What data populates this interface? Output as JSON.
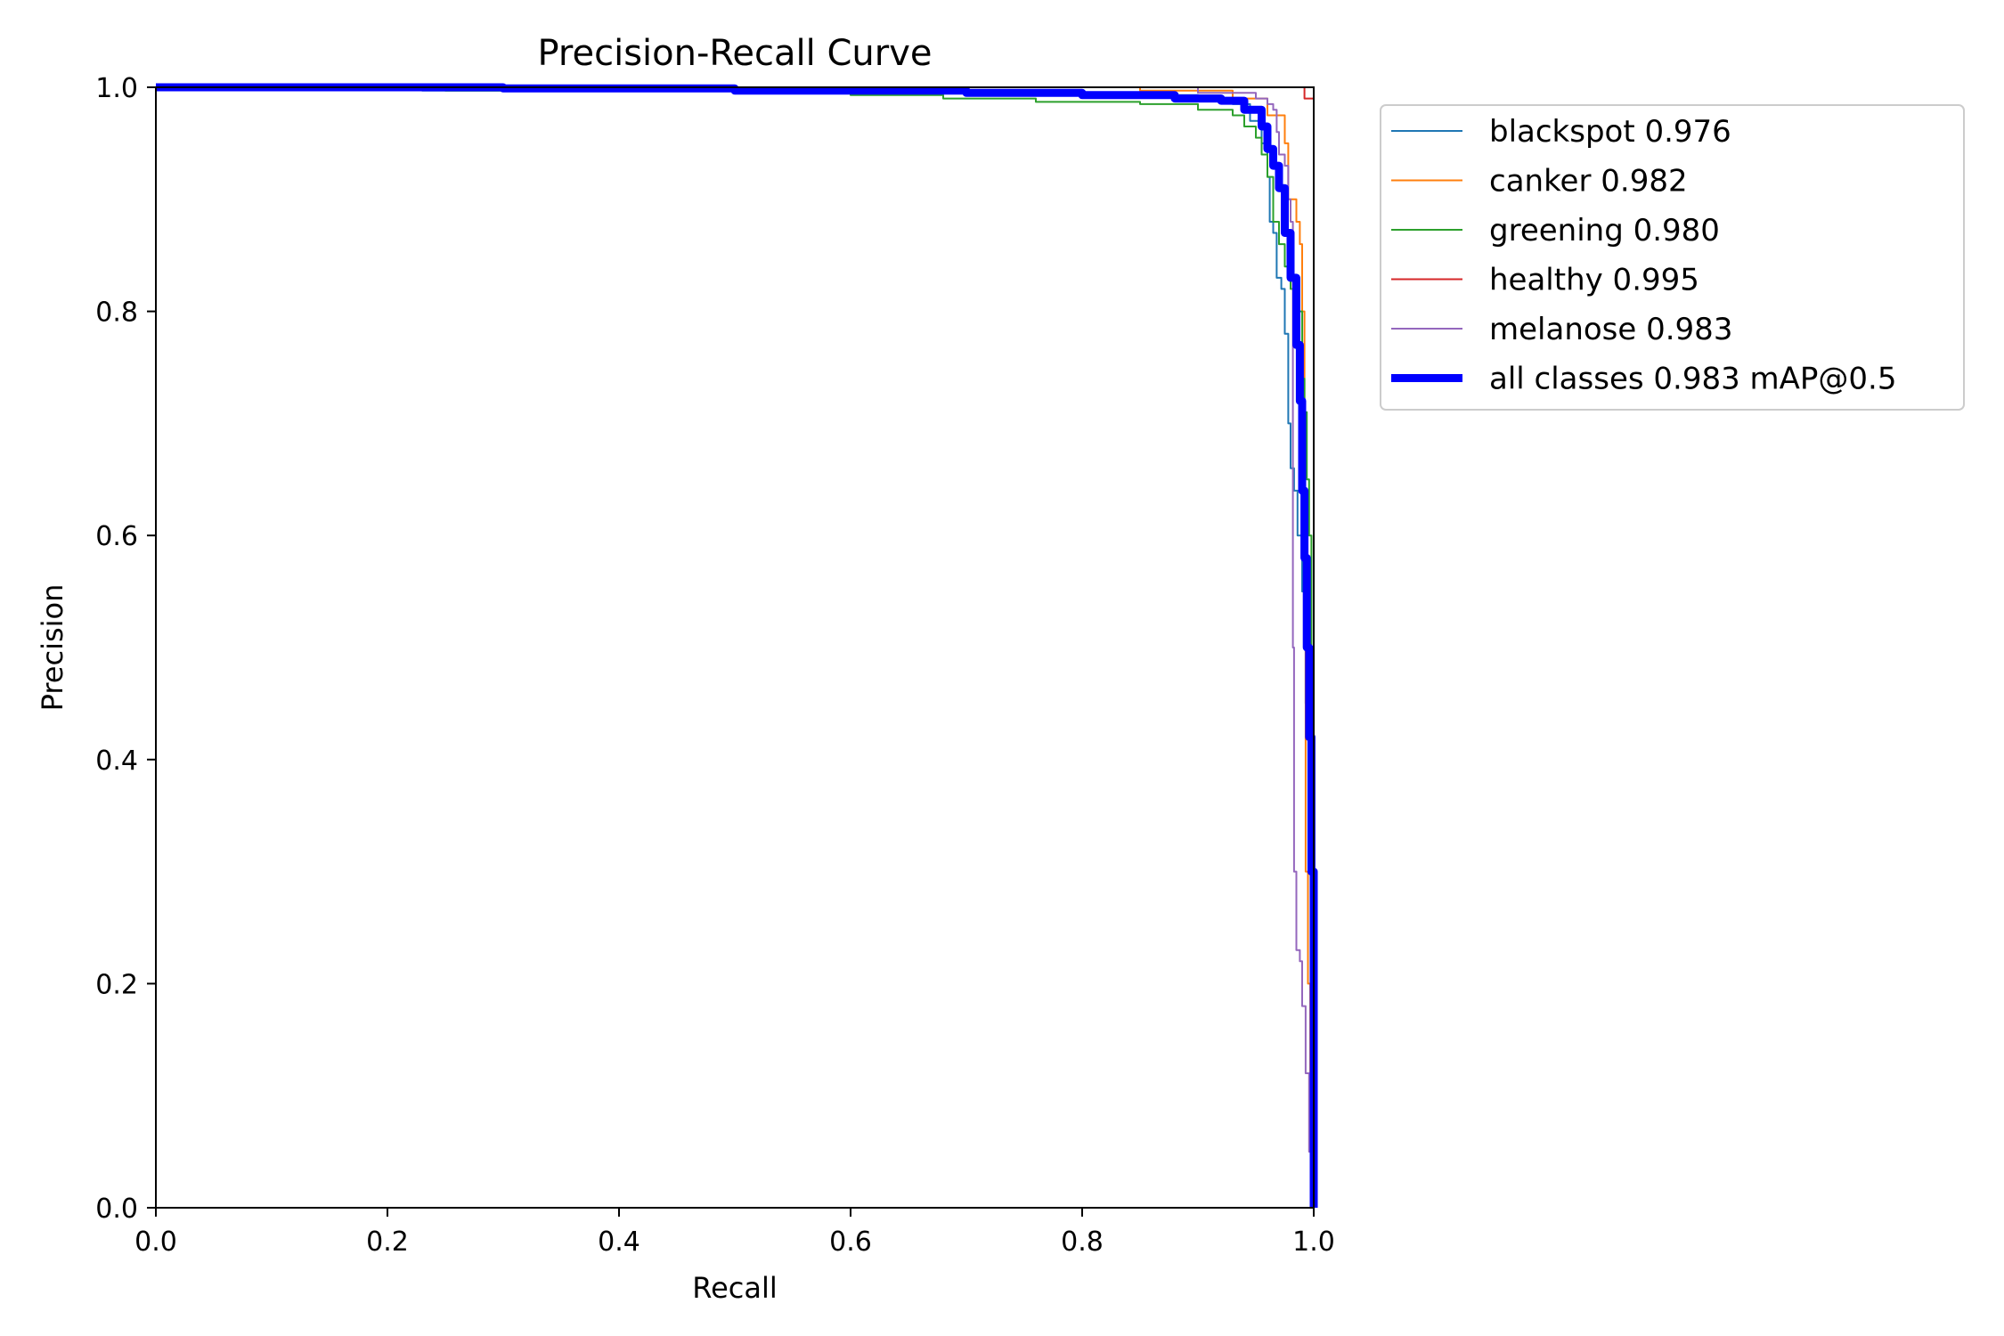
{
  "chart_data": {
    "type": "line",
    "title": "Precision-Recall Curve",
    "xlabel": "Recall",
    "ylabel": "Precision",
    "xlim": [
      0,
      1
    ],
    "ylim": [
      0,
      1
    ],
    "xticks": [
      "0.0",
      "0.2",
      "0.4",
      "0.6",
      "0.8",
      "1.0"
    ],
    "yticks": [
      "0.0",
      "0.2",
      "0.4",
      "0.6",
      "0.8",
      "1.0"
    ],
    "grid": false,
    "legend_position": "outside-top-right",
    "series": [
      {
        "name": "blackspot 0.976",
        "color": "#1f77b4",
        "points": [
          [
            0,
            1.0
          ],
          [
            0.22,
            1.0
          ],
          [
            0.23,
            0.997
          ],
          [
            0.6,
            0.995
          ],
          [
            0.8,
            0.993
          ],
          [
            0.9,
            0.99
          ],
          [
            0.93,
            0.985
          ],
          [
            0.945,
            0.97
          ],
          [
            0.955,
            0.95
          ],
          [
            0.96,
            0.92
          ],
          [
            0.962,
            0.88
          ],
          [
            0.965,
            0.87
          ],
          [
            0.968,
            0.83
          ],
          [
            0.972,
            0.82
          ],
          [
            0.975,
            0.78
          ],
          [
            0.978,
            0.7
          ],
          [
            0.98,
            0.66
          ],
          [
            0.983,
            0.64
          ],
          [
            0.986,
            0.6
          ],
          [
            0.99,
            0.55
          ],
          [
            0.993,
            0.45
          ],
          [
            0.996,
            0.3
          ],
          [
            0.998,
            0.15
          ],
          [
            1.0,
            0.0
          ]
        ]
      },
      {
        "name": "canker 0.982",
        "color": "#ff7f0e",
        "points": [
          [
            0,
            1.0
          ],
          [
            0.6,
            1.0
          ],
          [
            0.85,
            0.997
          ],
          [
            0.93,
            0.99
          ],
          [
            0.96,
            0.975
          ],
          [
            0.975,
            0.95
          ],
          [
            0.978,
            0.9
          ],
          [
            0.985,
            0.88
          ],
          [
            0.988,
            0.86
          ],
          [
            0.99,
            0.8
          ],
          [
            0.992,
            0.5
          ],
          [
            0.993,
            0.3
          ],
          [
            0.995,
            0.2
          ],
          [
            0.997,
            0.12
          ],
          [
            1.0,
            0.0
          ]
        ]
      },
      {
        "name": "greening 0.980",
        "color": "#2ca02c",
        "points": [
          [
            0,
            1.0
          ],
          [
            0.25,
            0.997
          ],
          [
            0.6,
            0.993
          ],
          [
            0.68,
            0.99
          ],
          [
            0.76,
            0.987
          ],
          [
            0.85,
            0.985
          ],
          [
            0.9,
            0.98
          ],
          [
            0.93,
            0.975
          ],
          [
            0.94,
            0.965
          ],
          [
            0.95,
            0.955
          ],
          [
            0.955,
            0.94
          ],
          [
            0.96,
            0.92
          ],
          [
            0.965,
            0.88
          ],
          [
            0.97,
            0.86
          ],
          [
            0.975,
            0.84
          ],
          [
            0.98,
            0.82
          ],
          [
            0.985,
            0.8
          ],
          [
            0.99,
            0.74
          ],
          [
            0.992,
            0.71
          ],
          [
            0.994,
            0.65
          ],
          [
            0.996,
            0.6
          ],
          [
            0.998,
            0.45
          ],
          [
            1.0,
            0.0
          ]
        ]
      },
      {
        "name": "healthy 0.995",
        "color": "#d62728",
        "points": [
          [
            0,
            1.0
          ],
          [
            0.99,
            1.0
          ],
          [
            0.992,
            0.99
          ],
          [
            0.998,
            0.99
          ],
          [
            1.0,
            0.98
          ],
          [
            1.0,
            0.0
          ]
        ]
      },
      {
        "name": "melanose 0.983",
        "color": "#9467bd",
        "points": [
          [
            0,
            1.0
          ],
          [
            0.5,
            1.0
          ],
          [
            0.9,
            0.995
          ],
          [
            0.95,
            0.99
          ],
          [
            0.96,
            0.985
          ],
          [
            0.965,
            0.98
          ],
          [
            0.968,
            0.96
          ],
          [
            0.97,
            0.94
          ],
          [
            0.975,
            0.93
          ],
          [
            0.978,
            0.9
          ],
          [
            0.98,
            0.88
          ],
          [
            0.982,
            0.5
          ],
          [
            0.983,
            0.3
          ],
          [
            0.985,
            0.23
          ],
          [
            0.988,
            0.22
          ],
          [
            0.99,
            0.18
          ],
          [
            0.993,
            0.12
          ],
          [
            0.996,
            0.05
          ],
          [
            1.0,
            0.0
          ]
        ]
      },
      {
        "name": "all classes 0.983 mAP@0.5",
        "color": "#0000ff",
        "thick": true,
        "points": [
          [
            0,
            1.0
          ],
          [
            0.3,
            0.999
          ],
          [
            0.5,
            0.997
          ],
          [
            0.7,
            0.995
          ],
          [
            0.8,
            0.993
          ],
          [
            0.88,
            0.99
          ],
          [
            0.92,
            0.988
          ],
          [
            0.94,
            0.98
          ],
          [
            0.955,
            0.965
          ],
          [
            0.96,
            0.945
          ],
          [
            0.965,
            0.93
          ],
          [
            0.97,
            0.91
          ],
          [
            0.975,
            0.87
          ],
          [
            0.98,
            0.83
          ],
          [
            0.985,
            0.77
          ],
          [
            0.988,
            0.72
          ],
          [
            0.99,
            0.64
          ],
          [
            0.992,
            0.58
          ],
          [
            0.994,
            0.5
          ],
          [
            0.996,
            0.42
          ],
          [
            0.998,
            0.3
          ],
          [
            1.0,
            0.0
          ]
        ]
      }
    ]
  }
}
